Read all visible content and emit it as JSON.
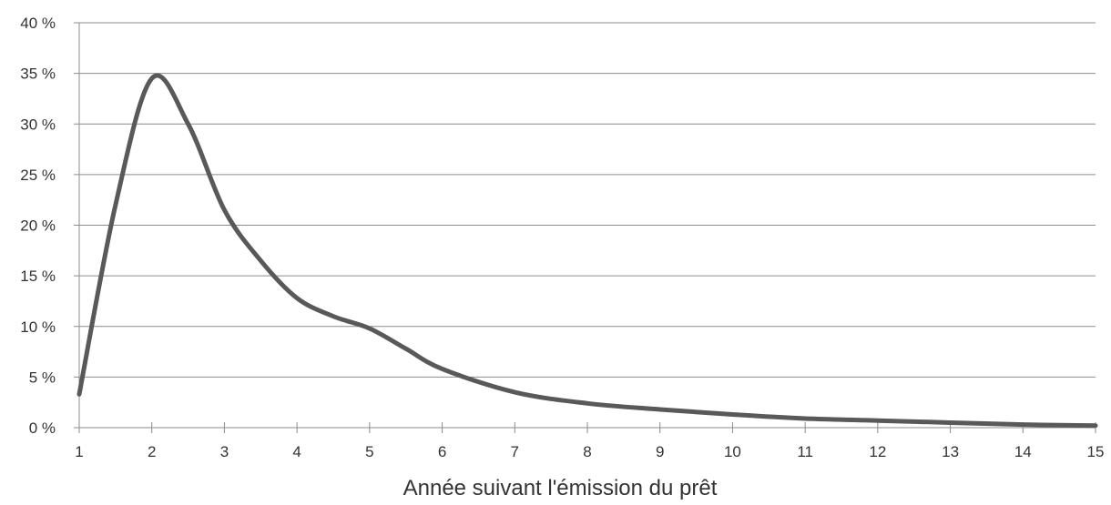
{
  "chart_data": {
    "type": "line",
    "title": "",
    "xlabel": "Année suivant l'émission du prêt",
    "ylabel": "",
    "xlim": [
      1,
      15
    ],
    "ylim": [
      0,
      40
    ],
    "x_ticks": [
      1,
      2,
      3,
      4,
      5,
      6,
      7,
      8,
      9,
      10,
      11,
      12,
      13,
      14,
      15
    ],
    "y_ticks": [
      0,
      5,
      10,
      15,
      20,
      25,
      30,
      35,
      40
    ],
    "y_tick_labels": [
      "0 %",
      "5 %",
      "10 %",
      "15 %",
      "20 %",
      "25 %",
      "30 %",
      "35 %",
      "40 %"
    ],
    "grid": "horizontal",
    "legend": "none",
    "series": [
      {
        "x": [
          1,
          1.5,
          2,
          2.5,
          3,
          3.5,
          4,
          4.5,
          5,
          5.5,
          6,
          7,
          8,
          9,
          10,
          11,
          12,
          13,
          14,
          15
        ],
        "values": [
          3.3,
          22,
          34.5,
          30,
          21.5,
          16.5,
          12.8,
          11,
          9.8,
          7.8,
          5.8,
          3.5,
          2.4,
          1.8,
          1.3,
          0.9,
          0.7,
          0.5,
          0.3,
          0.2
        ],
        "color": "#595959"
      }
    ]
  }
}
